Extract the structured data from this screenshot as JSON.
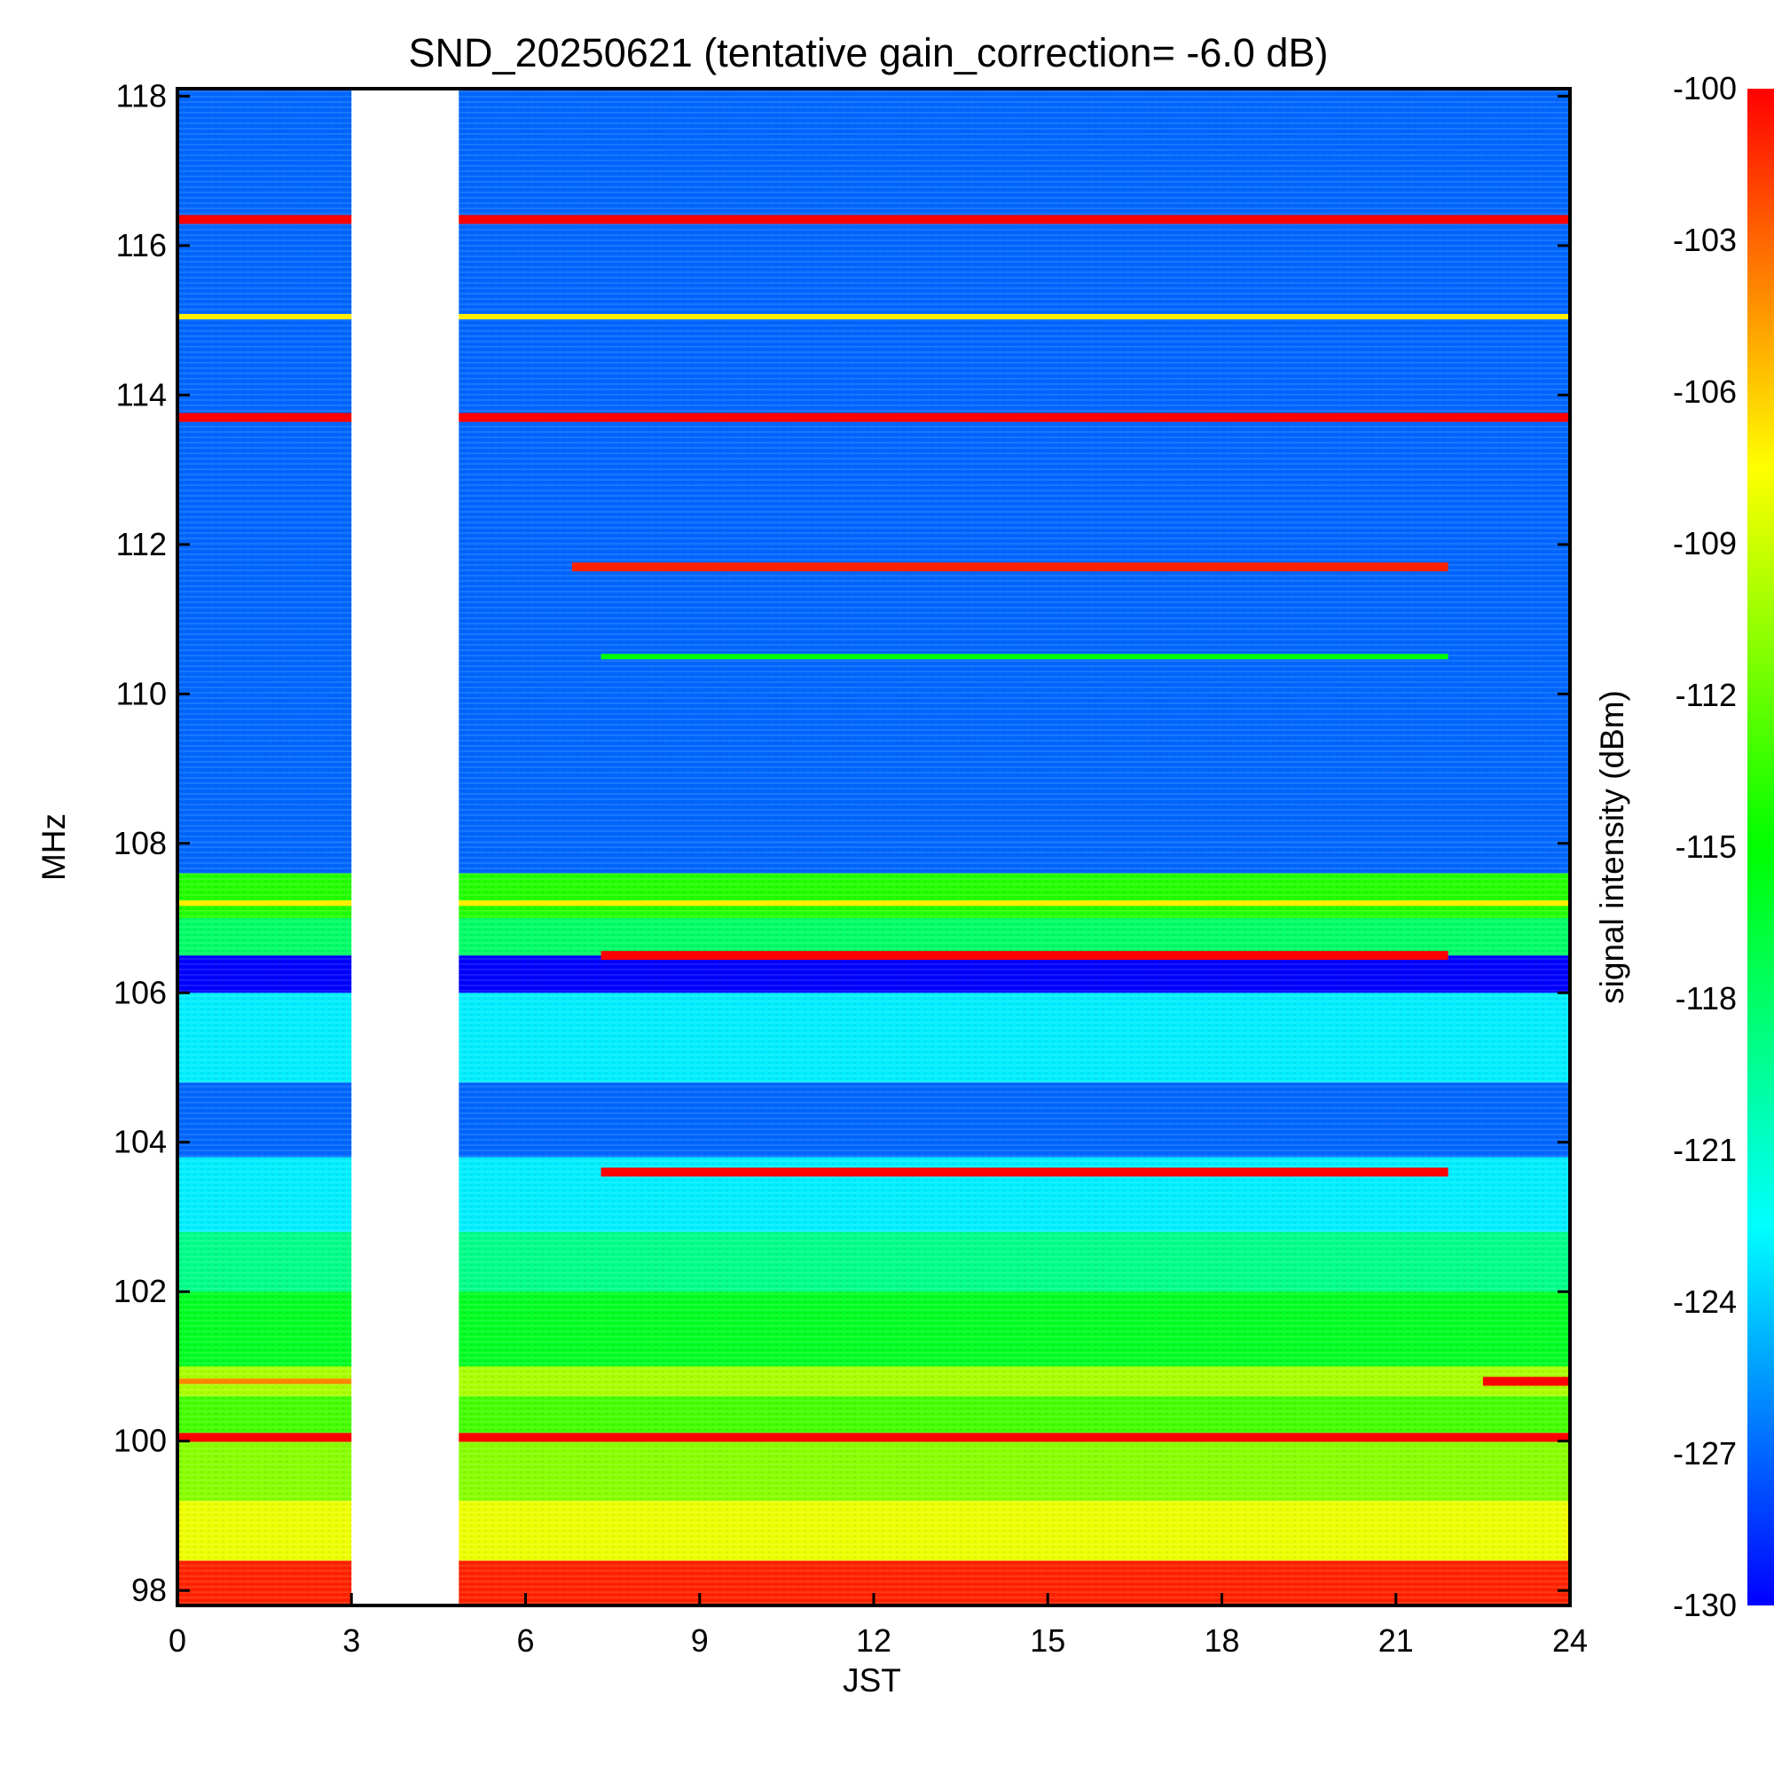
{
  "chart_data": {
    "type": "heatmap",
    "title": "SND_20250621 (tentative gain_correction= -6.0 dB)",
    "xlabel": "JST",
    "ylabel": "MHz",
    "colorbar_label": "signal intensity (dBm)",
    "xlim": [
      0,
      24
    ],
    "ylim": [
      97.8,
      118.1
    ],
    "x_ticks": [
      "0",
      "3",
      "6",
      "9",
      "12",
      "15",
      "18",
      "21",
      "24"
    ],
    "y_ticks": [
      "98",
      "100",
      "102",
      "104",
      "106",
      "108",
      "110",
      "112",
      "114",
      "116",
      "118"
    ],
    "colorbar_range": [
      -130,
      -100
    ],
    "colorbar_ticks": [
      "-100",
      "-103",
      "-106",
      "-109",
      "-112",
      "-115",
      "-118",
      "-121",
      "-124",
      "-127",
      "-130"
    ],
    "colormap": [
      "#0000ff",
      "#0080ff",
      "#00ffff",
      "#00ff80",
      "#00ff00",
      "#80ff00",
      "#ffff00",
      "#ff8000",
      "#ff0000"
    ],
    "data_gap_hours": [
      3.0,
      4.85
    ],
    "background_bands": [
      {
        "f_low": 97.8,
        "f_high": 98.4,
        "dbm": -101
      },
      {
        "f_low": 98.4,
        "f_high": 99.2,
        "dbm": -108
      },
      {
        "f_low": 99.2,
        "f_high": 100.0,
        "dbm": -111
      },
      {
        "f_low": 100.0,
        "f_high": 100.6,
        "dbm": -113
      },
      {
        "f_low": 100.6,
        "f_high": 101.0,
        "dbm": -110
      },
      {
        "f_low": 101.0,
        "f_high": 102.0,
        "dbm": -116
      },
      {
        "f_low": 102.0,
        "f_high": 102.8,
        "dbm": -119
      },
      {
        "f_low": 102.8,
        "f_high": 103.8,
        "dbm": -123
      },
      {
        "f_low": 103.8,
        "f_high": 104.8,
        "dbm": -127
      },
      {
        "f_low": 104.8,
        "f_high": 106.0,
        "dbm": -123
      },
      {
        "f_low": 106.0,
        "f_high": 106.5,
        "dbm": -130
      },
      {
        "f_low": 106.5,
        "f_high": 107.0,
        "dbm": -118
      },
      {
        "f_low": 107.0,
        "f_high": 107.6,
        "dbm": -114
      },
      {
        "f_low": 107.6,
        "f_high": 108.0,
        "dbm": -127
      },
      {
        "f_low": 108.0,
        "f_high": 118.1,
        "dbm": -127
      }
    ],
    "signal_lines": [
      {
        "freq": 116.35,
        "t_start": 0,
        "t_end": 24,
        "dbm": -100
      },
      {
        "freq": 115.05,
        "t_start": 0,
        "t_end": 24,
        "dbm": -107
      },
      {
        "freq": 113.7,
        "t_start": 0,
        "t_end": 24,
        "dbm": -100
      },
      {
        "freq": 111.7,
        "t_start": 6.8,
        "t_end": 21.9,
        "dbm": -101
      },
      {
        "freq": 110.5,
        "t_start": 7.3,
        "t_end": 21.9,
        "dbm": -115
      },
      {
        "freq": 107.2,
        "t_start": 0,
        "t_end": 24,
        "dbm": -107
      },
      {
        "freq": 106.5,
        "t_start": 7.3,
        "t_end": 21.9,
        "dbm": -100
      },
      {
        "freq": 103.6,
        "t_start": 7.3,
        "t_end": 21.9,
        "dbm": -100
      },
      {
        "freq": 100.8,
        "t_start": 0,
        "t_end": 3.0,
        "dbm": -104
      },
      {
        "freq": 100.8,
        "t_start": 22.5,
        "t_end": 24,
        "dbm": -100
      },
      {
        "freq": 100.05,
        "t_start": 0,
        "t_end": 24,
        "dbm": -100
      }
    ]
  }
}
